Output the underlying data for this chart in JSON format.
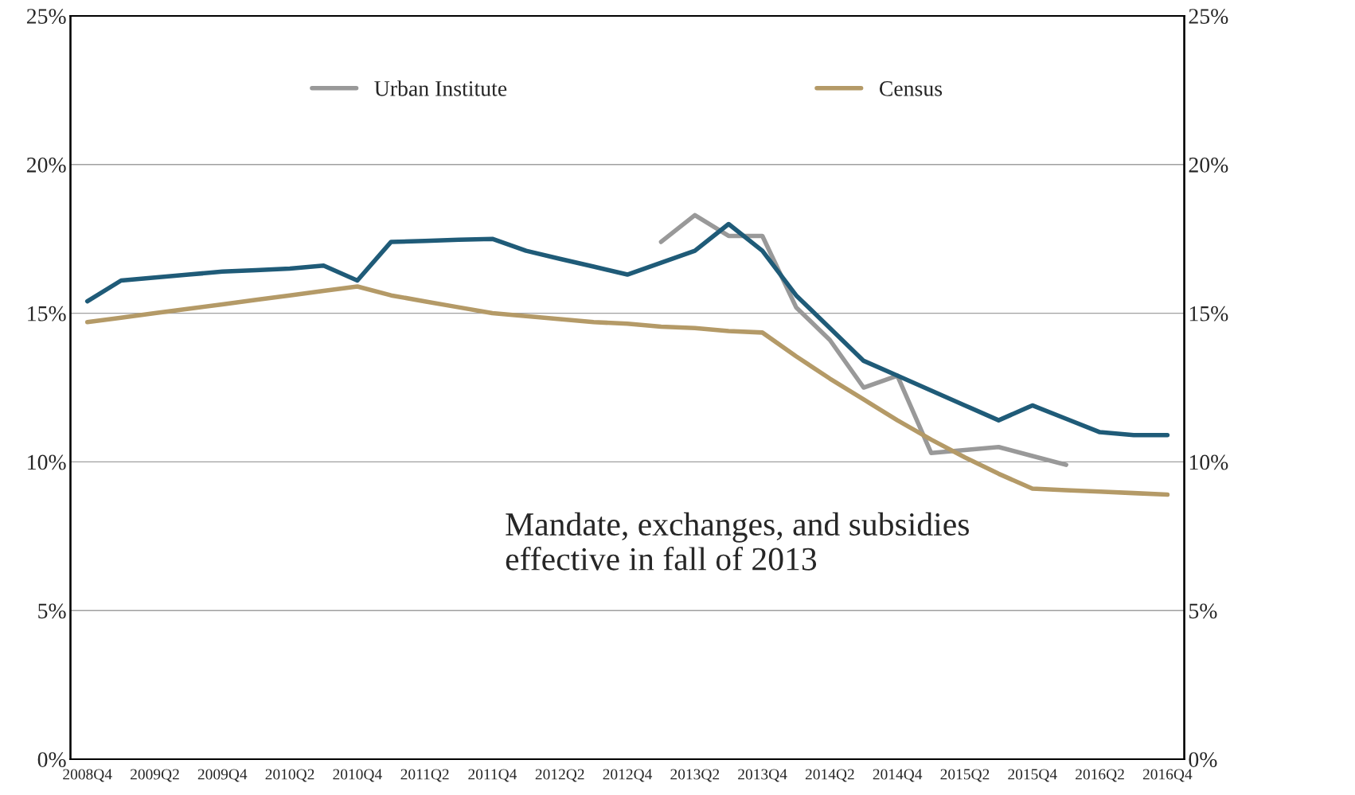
{
  "chart_data": {
    "type": "line",
    "categories": [
      "2008Q4",
      null,
      "2009Q2",
      null,
      "2009Q4",
      null,
      "2010Q2",
      null,
      "2010Q4",
      null,
      "2011Q2",
      null,
      "2011Q4",
      null,
      "2012Q2",
      null,
      "2012Q4",
      null,
      "2013Q2",
      null,
      "2013Q4",
      null,
      "2014Q2",
      null,
      "2014Q4",
      null,
      "2015Q2",
      null,
      "2015Q4",
      null,
      "2016Q2",
      null,
      "2016Q4"
    ],
    "series": [
      {
        "name": "Urban Institute",
        "color": "#999999",
        "values": [
          null,
          null,
          null,
          null,
          null,
          null,
          null,
          null,
          null,
          null,
          null,
          null,
          null,
          null,
          null,
          null,
          null,
          17.4,
          18.3,
          17.6,
          17.6,
          15.2,
          14.1,
          12.5,
          12.9,
          10.3,
          10.4,
          10.5,
          10.2,
          9.9,
          null,
          null,
          null
        ]
      },
      {
        "color": "#1f5b78",
        "values": [
          15.4,
          16.1,
          16.2,
          16.3,
          16.4,
          16.45,
          16.5,
          16.6,
          16.1,
          17.4,
          17.43,
          17.47,
          17.5,
          17.1,
          16.83,
          16.57,
          16.3,
          16.7,
          17.1,
          18.0,
          17.1,
          15.6,
          14.5,
          13.4,
          12.9,
          12.4,
          11.9,
          11.4,
          11.9,
          11.45,
          11.0,
          10.9,
          10.9
        ]
      },
      {
        "name": "Census",
        "color": "#b49a67",
        "values": [
          14.7,
          14.85,
          15.0,
          15.15,
          15.3,
          15.45,
          15.6,
          15.75,
          15.9,
          15.6,
          15.4,
          15.2,
          15.0,
          14.9,
          14.8,
          14.7,
          14.65,
          14.55,
          14.5,
          14.4,
          14.35,
          13.55,
          12.8,
          12.1,
          11.4,
          10.75,
          10.15,
          9.6,
          9.1,
          9.05,
          9.0,
          8.95,
          8.9
        ]
      }
    ],
    "ylim": [
      0,
      25
    ],
    "yticks": [
      {
        "value": 0,
        "label": "0%"
      },
      {
        "value": 5,
        "label": "5%"
      },
      {
        "value": 10,
        "label": "10%"
      },
      {
        "value": 15,
        "label": "15%"
      },
      {
        "value": 20,
        "label": "20%"
      },
      {
        "value": 25,
        "label": "25%"
      }
    ],
    "y2lim": [
      0,
      25
    ],
    "y2ticks": [
      {
        "value": 0,
        "label": "0%"
      },
      {
        "value": 5,
        "label": "5%"
      },
      {
        "value": 10,
        "label": "10%"
      },
      {
        "value": 15,
        "label": "15%"
      },
      {
        "value": 20,
        "label": "20%"
      },
      {
        "value": 25,
        "label": "25%"
      }
    ],
    "grid": "y",
    "legend": "top",
    "marker": "none",
    "line_style": "solid",
    "annotations": [
      "Mandate, exchanges, and subsidies\neffective in fall of 2013"
    ]
  }
}
